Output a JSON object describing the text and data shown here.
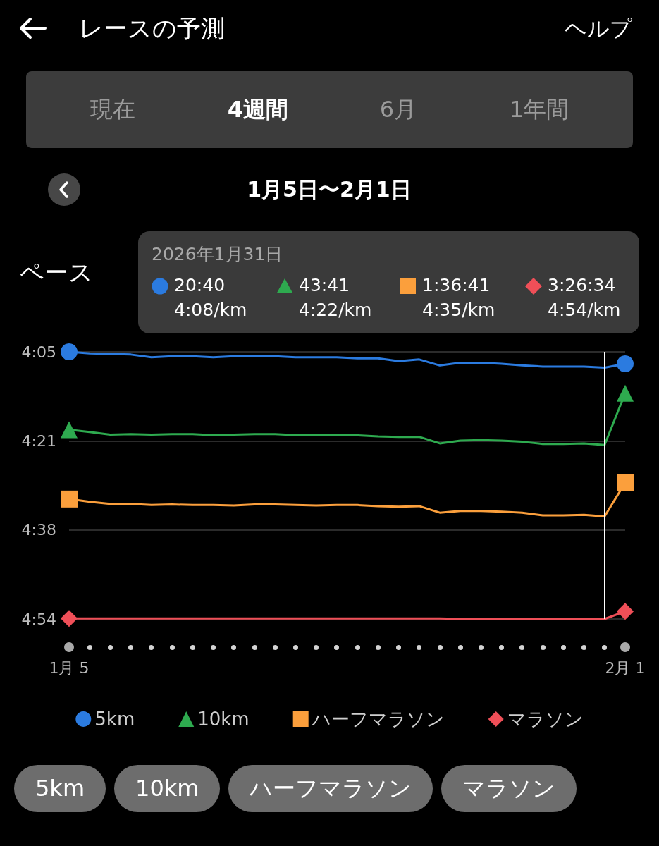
{
  "chart_data": {
    "type": "line",
    "title": "レースの予測",
    "subtitle": "1月5日〜2月1日",
    "ylabel": "ペース",
    "annotations": [
      "ヘルプ",
      "現在",
      "4週間",
      "6月",
      "1年間",
      "2026年1月31日",
      "20:40",
      "4:08/km",
      "43:41",
      "4:22/km",
      "1:36:41",
      "4:35/km",
      "3:26:34",
      "4:54/km"
    ],
    "x": [
      "2026-01-05",
      "2026-01-06",
      "2026-01-07",
      "2026-01-08",
      "2026-01-09",
      "2026-01-10",
      "2026-01-11",
      "2026-01-12",
      "2026-01-13",
      "2026-01-14",
      "2026-01-15",
      "2026-01-16",
      "2026-01-17",
      "2026-01-18",
      "2026-01-19",
      "2026-01-20",
      "2026-01-21",
      "2026-01-22",
      "2026-01-23",
      "2026-01-24",
      "2026-01-25",
      "2026-01-26",
      "2026-01-27",
      "2026-01-28",
      "2026-01-29",
      "2026-01-30",
      "2026-01-31",
      "2026-02-01"
    ],
    "series": [
      {
        "color": "#2b7be0",
        "values": [
          245.0,
          245.3,
          245.4,
          245.5,
          246.0,
          245.8,
          245.8,
          246.0,
          245.8,
          245.8,
          245.8,
          246.0,
          246.0,
          246.0,
          246.2,
          246.2,
          246.7,
          246.4,
          247.5,
          247.0,
          247.0,
          247.2,
          247.5,
          247.7,
          247.7,
          247.7,
          247.9,
          247.2
        ]
      },
      {
        "color": "#2eaa4f",
        "values": [
          259.3,
          259.7,
          260.2,
          260.1,
          260.2,
          260.1,
          260.1,
          260.3,
          260.2,
          260.1,
          260.1,
          260.3,
          260.3,
          260.3,
          260.3,
          260.5,
          260.6,
          260.6,
          261.8,
          261.3,
          261.2,
          261.3,
          261.5,
          261.9,
          261.9,
          261.8,
          262.1,
          252.6
        ]
      },
      {
        "color": "#fb9f3c",
        "values": [
          272.0,
          272.5,
          272.9,
          272.9,
          273.1,
          273.0,
          273.1,
          273.1,
          273.2,
          273.0,
          273.0,
          273.1,
          273.2,
          273.1,
          273.1,
          273.3,
          273.4,
          273.3,
          274.5,
          274.2,
          274.2,
          274.3,
          274.5,
          275.0,
          275.0,
          274.9,
          275.2,
          269.0
        ]
      },
      {
        "color": "#ef4f58",
        "values": [
          293.9,
          293.9,
          293.9,
          293.9,
          293.9,
          293.9,
          293.9,
          293.9,
          293.9,
          293.9,
          293.9,
          293.9,
          293.9,
          293.9,
          293.9,
          293.9,
          293.9,
          293.9,
          293.9,
          294.0,
          294.0,
          294.0,
          294.0,
          294.0,
          294.0,
          294.0,
          294.0,
          292.6
        ]
      },
      {
        "type": "scatter",
        "name": "5km",
        "color": "#2b7be0",
        "marker": "circle",
        "x": [
          "2026-01-05",
          "2026-02-01"
        ],
        "values": [
          245.0,
          247.2
        ]
      },
      {
        "type": "scatter",
        "name": "10km",
        "color": "#2eaa4f",
        "marker": "triangle",
        "x": [
          "2026-01-05",
          "2026-02-01"
        ],
        "values": [
          259.3,
          252.6
        ]
      },
      {
        "type": "scatter",
        "name": "ハーフマラソン",
        "color": "#fb9f3c",
        "marker": "square",
        "x": [
          "2026-01-05",
          "2026-02-01"
        ],
        "values": [
          272.0,
          269.0
        ]
      },
      {
        "type": "scatter",
        "name": "マラソン",
        "color": "#ef4f58",
        "marker": "diamond",
        "x": [
          "2026-01-05",
          "2026-02-01"
        ],
        "values": [
          293.9,
          292.6
        ]
      }
    ],
    "xlim": [
      "2026-01-05",
      "2026-02-01"
    ],
    "xticks": [
      {
        "value": "2026-01-05",
        "label": "1月 5"
      },
      {
        "value": "2026-02-01",
        "label": "2月 1"
      }
    ],
    "ylim": [
      294,
      245
    ],
    "yticks": [
      {
        "value": 245,
        "label": "4:05"
      },
      {
        "value": 261.33,
        "label": "4:21"
      },
      {
        "value": 277.67,
        "label": "4:38"
      },
      {
        "value": 294,
        "label": "4:54"
      }
    ],
    "ref_lines": [
      {
        "axis": "x",
        "value": "2026-01-31",
        "color": "#ffffff"
      }
    ],
    "grid": "y",
    "legend": "bottom"
  }
}
